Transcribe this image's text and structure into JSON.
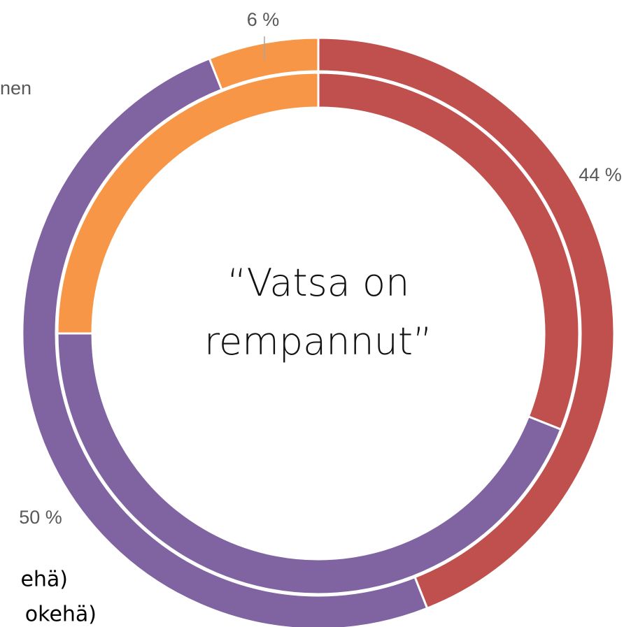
{
  "chart_data": {
    "type": "donut",
    "title": "“Vatsa on rempannut”",
    "categories": [
      null,
      null,
      null
    ],
    "colors": [
      "#c0504d",
      "#8064a2",
      "#f79646"
    ],
    "annotations": [
      "nen"
    ],
    "series": [
      {
        "name": "okehä)",
        "values": [
          44,
          50,
          6
        ],
        "value_labels": [
          "44 %",
          "50 %",
          "6 %"
        ]
      },
      {
        "name": "ehä)",
        "values": [
          31,
          44,
          25
        ]
      }
    ]
  }
}
